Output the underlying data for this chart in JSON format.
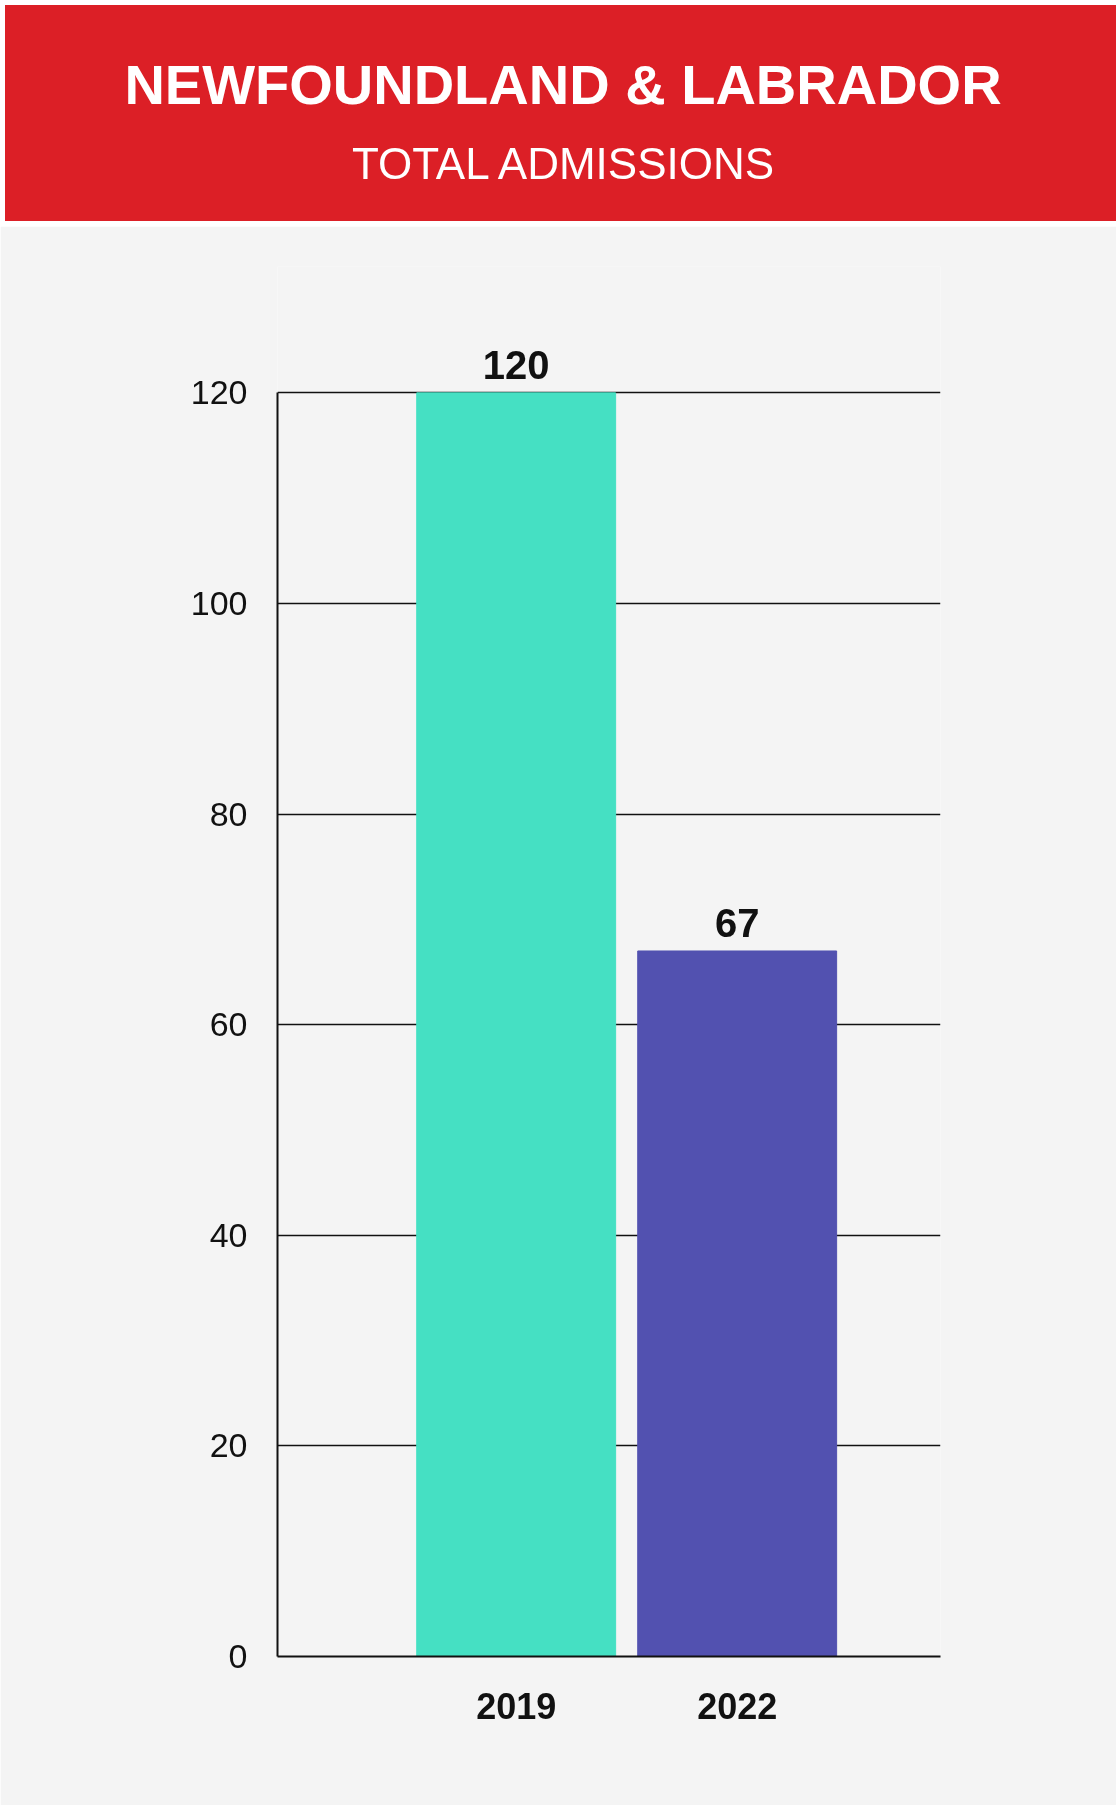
{
  "chart_data": {
    "type": "bar",
    "title": "NEWFOUNDLAND & LABRADOR",
    "subtitle": "TOTAL ADMISSIONS",
    "categories": [
      "2019",
      "2022"
    ],
    "values": [
      120,
      67
    ],
    "colors": [
      "#45e0c3",
      "#5251b0"
    ],
    "ylim": [
      0,
      120
    ],
    "yticks": [
      0,
      20,
      40,
      60,
      80,
      100,
      120
    ],
    "grid": "y",
    "data_labels": true
  }
}
